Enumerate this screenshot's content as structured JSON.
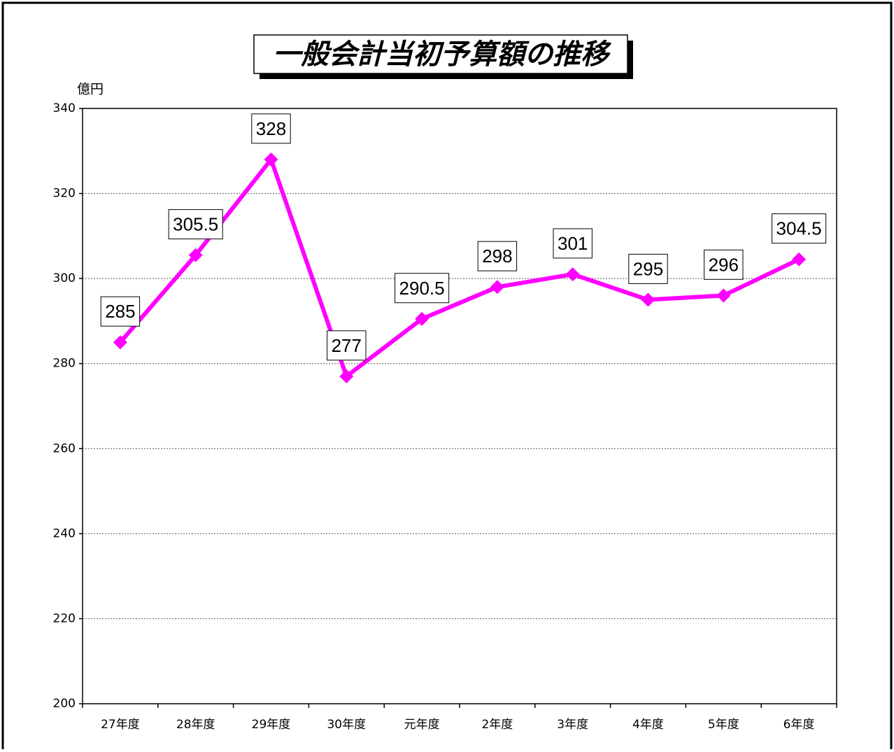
{
  "chart_data": {
    "type": "line",
    "title": "一般会計当初予算額の推移",
    "y_label": "億円",
    "categories": [
      "27年度",
      "28年度",
      "29年度",
      "30年度",
      "元年度",
      "2年度",
      "3年度",
      "4年度",
      "5年度",
      "6年度"
    ],
    "values": [
      285,
      305.5,
      328,
      277,
      290.5,
      298,
      301,
      295,
      296,
      304.5
    ],
    "color": "#ff00ff",
    "ylim": [
      200,
      340
    ],
    "yticks": [
      200,
      220,
      240,
      260,
      280,
      300,
      320,
      340
    ],
    "grid": true
  }
}
